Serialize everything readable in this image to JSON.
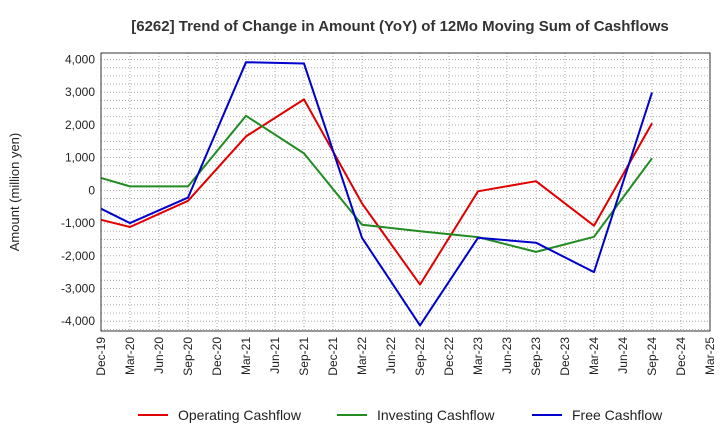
{
  "chart_data": {
    "type": "line",
    "title": "[6262]  Trend of Change in Amount (YoY) of 12Mo Moving Sum of Cashflows",
    "xlabel": "",
    "ylabel": "Amount (million yen)",
    "ylim": [
      -4300,
      4200
    ],
    "yticks": [
      4000,
      3000,
      2000,
      1000,
      0,
      -1000,
      -2000,
      -3000,
      -4000
    ],
    "ytick_labels": [
      "4,000",
      "3,000",
      "2,000",
      "1,000",
      "0",
      "-1,000",
      "-2,000",
      "-3,000",
      "-4,000"
    ],
    "categories": [
      "Dec-19",
      "Mar-20",
      "Jun-20",
      "Sep-20",
      "Dec-20",
      "Mar-21",
      "Jun-21",
      "Sep-21",
      "Dec-21",
      "Mar-22",
      "Jun-22",
      "Sep-22",
      "Dec-22",
      "Mar-23",
      "Jun-23",
      "Sep-23",
      "Dec-23",
      "Mar-24",
      "Jun-24",
      "Sep-24",
      "Dec-24",
      "Mar-25"
    ],
    "grid": true,
    "legend_position": "bottom",
    "series": [
      {
        "name": "Operating Cashflow",
        "color": "#e00000",
        "values": [
          -900,
          -1120,
          null,
          -320,
          null,
          1650,
          null,
          2780,
          null,
          -400,
          null,
          -2880,
          null,
          -30,
          null,
          280,
          null,
          -1080,
          null,
          2050,
          null,
          null
        ]
      },
      {
        "name": "Investing Cashflow",
        "color": "#228b22",
        "values": [
          380,
          120,
          null,
          120,
          null,
          2280,
          null,
          1130,
          null,
          -1050,
          null,
          -1250,
          null,
          -1430,
          null,
          -1880,
          null,
          -1420,
          null,
          980,
          null,
          null
        ]
      },
      {
        "name": "Free Cashflow",
        "color": "#0000cc",
        "values": [
          -560,
          -1000,
          null,
          -220,
          null,
          3920,
          null,
          3880,
          null,
          -1450,
          null,
          -4130,
          null,
          -1450,
          null,
          -1600,
          null,
          -2500,
          null,
          2990,
          null,
          null
        ]
      }
    ]
  }
}
